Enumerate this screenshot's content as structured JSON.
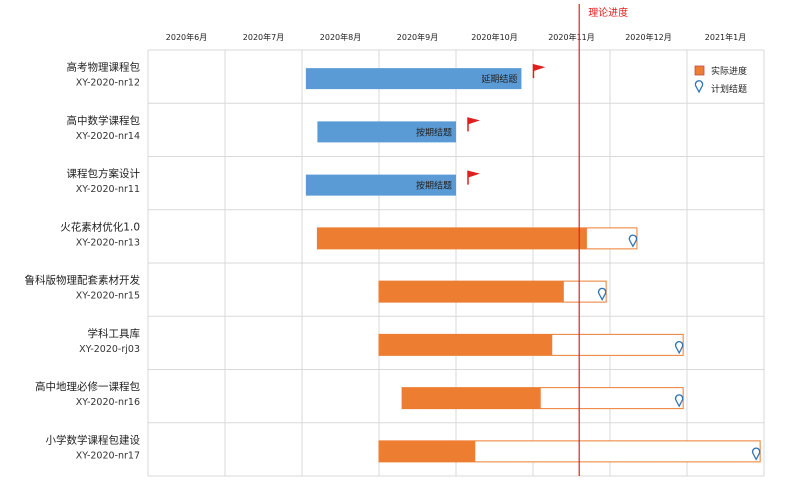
{
  "chart_data": {
    "type": "gantt",
    "x_axis": {
      "ticks": [
        "2020年6月",
        "2020年7月",
        "2020年8月",
        "2020年9月",
        "2020年10月",
        "2020年11月",
        "2020年12月",
        "2021年1月"
      ],
      "range_months": [
        0,
        8
      ]
    },
    "reference_line": {
      "label": "理论进度",
      "month": 5.6
    },
    "legend": {
      "position": "top-right",
      "actual_label": "实际进度",
      "plan_label": "计划结题"
    },
    "colors": {
      "actual_done": "#5b9bd5",
      "actual_running": "#ed7d31",
      "plan_outline": "#ed7d31",
      "reference": "#e02020",
      "flag": "#e02020",
      "grid": "#d9d9d9"
    },
    "rows": [
      {
        "name": "高考物理课程包",
        "code": "XY-2020-nr12",
        "start": 2.05,
        "actual_end": 4.85,
        "plan_end": null,
        "status": "done",
        "status_label": "延期结题",
        "flag": true
      },
      {
        "name": "高中数学课程包",
        "code": "XY-2020-nr14",
        "start": 2.2,
        "actual_end": 4.0,
        "plan_end": null,
        "status": "done",
        "status_label": "按期结题",
        "flag": true
      },
      {
        "name": "课程包方案设计",
        "code": "XY-2020-nr11",
        "start": 2.05,
        "actual_end": 4.0,
        "plan_end": null,
        "status": "done",
        "status_label": "按期结题",
        "flag": true
      },
      {
        "name": "火花素材优化1.0",
        "code": "XY-2020-nr13",
        "start": 2.2,
        "actual_end": 5.7,
        "plan_end": 6.35,
        "status": "running",
        "status_label": "",
        "flag": false
      },
      {
        "name": "鲁科版物理配套素材开发",
        "code": "XY-2020-nr15",
        "start": 3.0,
        "actual_end": 5.4,
        "plan_end": 5.95,
        "status": "running",
        "status_label": "",
        "flag": false
      },
      {
        "name": "学科工具库",
        "code": "XY-2020-rj03",
        "start": 3.0,
        "actual_end": 5.25,
        "plan_end": 6.95,
        "status": "running",
        "status_label": "",
        "flag": false
      },
      {
        "name": "高中地理必修一课程包",
        "code": "XY-2020-nr16",
        "start": 3.3,
        "actual_end": 5.1,
        "plan_end": 6.95,
        "status": "running",
        "status_label": "",
        "flag": false
      },
      {
        "name": "小学数学课程包建设",
        "code": "XY-2020-nr17",
        "start": 3.0,
        "actual_end": 4.25,
        "plan_end": 7.95,
        "status": "running",
        "status_label": "",
        "flag": false
      }
    ]
  }
}
